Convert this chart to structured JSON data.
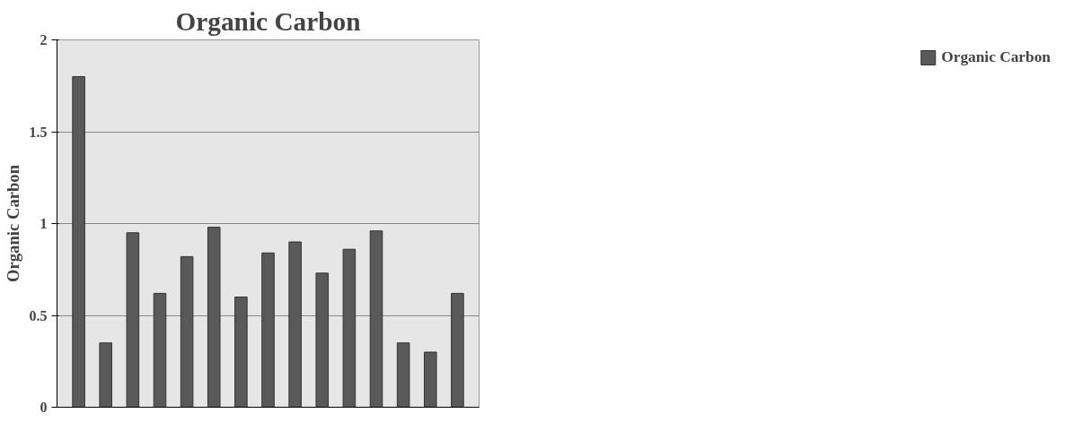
{
  "chart_data": {
    "type": "bar",
    "title": "Organic Carbon",
    "ylabel": "Organic Carbon",
    "categories": [
      null,
      null,
      null,
      null,
      null,
      null,
      null,
      null,
      null,
      null,
      null,
      null,
      null,
      null,
      null
    ],
    "series": [
      {
        "name": "Organic Carbon",
        "color": "#595959",
        "values": [
          1.8,
          0.35,
          0.95,
          0.62,
          0.82,
          0.98,
          0.6,
          0.84,
          0.9,
          0.73,
          0.86,
          0.96,
          0.35,
          0.3,
          0.62
        ]
      }
    ],
    "ylim": [
      0,
      2
    ],
    "yticks": [
      0,
      0.5,
      1,
      1.5,
      2
    ],
    "grid": "y",
    "legend": "right",
    "tick_labels": "y"
  }
}
